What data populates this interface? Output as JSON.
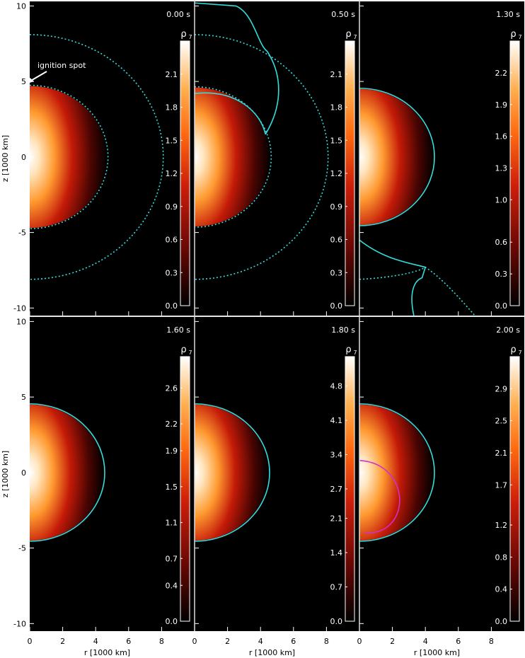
{
  "chart_data": {
    "type": "heatmap",
    "xlabel": "r [1000 km]",
    "ylabel": "z [1000 km]",
    "x_ticks": [
      "0",
      "2",
      "4",
      "6",
      "8"
    ],
    "y_ticks": [
      "10",
      "5",
      "0",
      "-5",
      "-10"
    ],
    "xlim": [
      0,
      10
    ],
    "ylim": [
      -10.5,
      10.3
    ],
    "colorbar_title": "ρ",
    "colorbar_subscript": "7",
    "annotation": "ignition spot",
    "colors": {
      "contour": "#33dddd",
      "inner_contour": "#cc33cc",
      "background": "#000000"
    },
    "panels": [
      {
        "time": "0.00 s",
        "colorbar_ticks": [
          "2.1",
          "1.8",
          "1.5",
          "1.2",
          "0.9",
          "0.6",
          "0.3",
          "0.0"
        ],
        "colorbar_values": [
          2.1,
          1.8,
          1.5,
          1.2,
          0.9,
          0.6,
          0.3,
          0.0
        ],
        "colorbar_max": 2.4,
        "core_radius": 4.7
      },
      {
        "time": "0.50 s",
        "colorbar_ticks": [
          "2.1",
          "1.8",
          "1.5",
          "1.2",
          "0.9",
          "0.6",
          "0.3",
          "0.0"
        ],
        "colorbar_values": [
          2.1,
          1.8,
          1.5,
          1.2,
          0.9,
          0.6,
          0.3,
          0.0
        ],
        "colorbar_max": 2.4,
        "core_radius": 4.6
      },
      {
        "time": "1.30 s",
        "colorbar_ticks": [
          "2.2",
          "1.9",
          "1.6",
          "1.3",
          "1.0",
          "0.6",
          "0.3",
          "0.0"
        ],
        "colorbar_values": [
          2.2,
          1.9,
          1.6,
          1.3,
          1.0,
          0.6,
          0.3,
          0.0
        ],
        "colorbar_max": 2.5,
        "core_radius": 4.5
      },
      {
        "time": "1.60 s",
        "colorbar_ticks": [
          "2.6",
          "2.2",
          "1.9",
          "1.5",
          "1.1",
          "0.7",
          "0.4",
          "0.0"
        ],
        "colorbar_values": [
          2.6,
          2.2,
          1.9,
          1.5,
          1.1,
          0.7,
          0.4,
          0.0
        ],
        "colorbar_max": 2.95,
        "core_radius": 4.5
      },
      {
        "time": "1.80 s",
        "colorbar_ticks": [
          "4.8",
          "4.1",
          "3.4",
          "2.7",
          "2.1",
          "1.4",
          "0.7",
          "0.0"
        ],
        "colorbar_values": [
          4.8,
          4.1,
          3.4,
          2.7,
          2.1,
          1.4,
          0.7,
          0.0
        ],
        "colorbar_max": 5.4,
        "core_radius": 4.5
      },
      {
        "time": "2.00 s",
        "colorbar_ticks": [
          "2.9",
          "2.5",
          "2.1",
          "1.7",
          "1.2",
          "0.8",
          "0.4",
          "0.0"
        ],
        "colorbar_values": [
          2.9,
          2.5,
          2.1,
          1.7,
          1.2,
          0.8,
          0.4,
          0.0
        ],
        "colorbar_max": 3.3,
        "core_radius": 4.5
      }
    ]
  }
}
